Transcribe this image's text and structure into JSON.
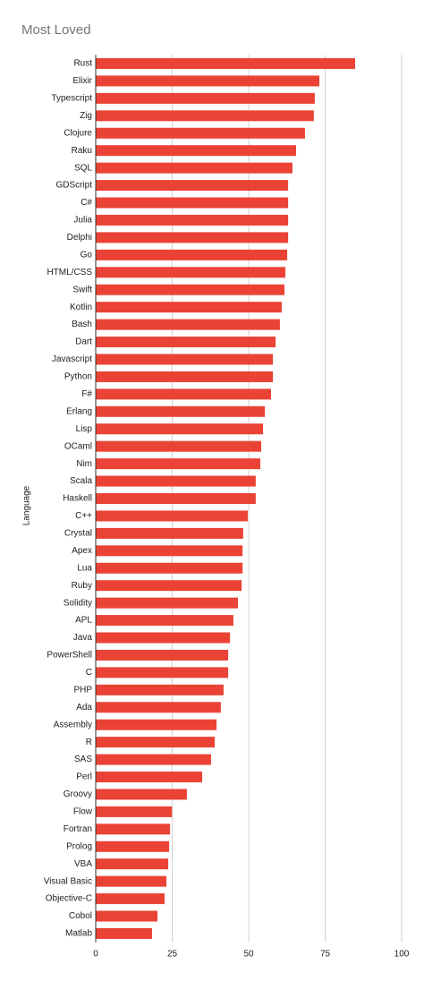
{
  "chart_data": {
    "type": "hbar",
    "title": "Most Loved",
    "y_label": "Language",
    "categories": [
      "Rust",
      "Elixir",
      "Typescript",
      "Zig",
      "Clojure",
      "Raku",
      "SQL",
      "GDScript",
      "C#",
      "Julia",
      "Delphi",
      "Go",
      "HTML/CSS",
      "Swift",
      "Kotlin",
      "Bash",
      "Dart",
      "Javascript",
      "Python",
      "F#",
      "Erlang",
      "Lisp",
      "OCaml",
      "Nim",
      "Scala",
      "Haskell",
      "C++",
      "Crystal",
      "Apex",
      "Lua",
      "Ruby",
      "Solidity",
      "APL",
      "Java",
      "PowerShell",
      "C",
      "PHP",
      "Ada",
      "Assembly",
      "R",
      "SAS",
      "Perl",
      "Groovy",
      "Flow",
      "Fortran",
      "Prolog",
      "VBA",
      "Visual Basic",
      "Objective-C",
      "Cobol",
      "Matlab"
    ],
    "values": [
      84.8,
      73.1,
      71.6,
      71.3,
      68.4,
      65.5,
      64.3,
      62.9,
      62.9,
      62.9,
      62.9,
      62.6,
      62.0,
      61.7,
      60.8,
      60.2,
      58.8,
      57.9,
      57.9,
      57.3,
      55.3,
      54.7,
      54.1,
      53.8,
      52.3,
      52.3,
      49.7,
      48.2,
      48.0,
      48.0,
      47.7,
      46.5,
      45.0,
      43.9,
      43.3,
      43.3,
      41.8,
      40.9,
      39.5,
      38.9,
      37.7,
      34.8,
      29.8,
      24.9,
      24.3,
      24.0,
      23.7,
      23.1,
      22.5,
      20.2,
      18.4
    ],
    "color": "#ea4335",
    "xlim": [
      0,
      100
    ],
    "xticks": [
      0,
      25,
      50,
      75,
      100
    ],
    "grid": true
  }
}
